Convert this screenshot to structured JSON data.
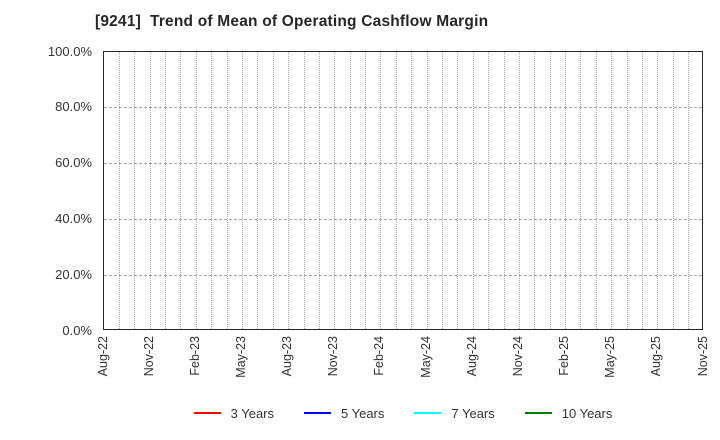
{
  "chart_data": {
    "type": "line",
    "title": "[9241]  Trend of Mean of Operating Cashflow Margin",
    "x_tick_labels": [
      "Aug-22",
      "Nov-22",
      "Feb-23",
      "May-23",
      "Aug-23",
      "Nov-23",
      "Feb-24",
      "May-24",
      "Aug-24",
      "Nov-24",
      "Feb-25",
      "May-25",
      "Aug-25",
      "Nov-25"
    ],
    "x_months_between_ticks": 3,
    "x_total_month_intervals": 39,
    "y_ticks": [
      {
        "value": 0,
        "label": "0.0%"
      },
      {
        "value": 20,
        "label": "20.0%"
      },
      {
        "value": 40,
        "label": "40.0%"
      },
      {
        "value": 60,
        "label": "60.0%"
      },
      {
        "value": 80,
        "label": "80.0%"
      },
      {
        "value": 100,
        "label": "100.0%"
      }
    ],
    "ylim": [
      0,
      100
    ],
    "grid": true,
    "legend_position": "bottom-center",
    "series": [
      {
        "name": "3 Years",
        "color": "#ff0000",
        "values": []
      },
      {
        "name": "5 Years",
        "color": "#0000ff",
        "values": []
      },
      {
        "name": "7 Years",
        "color": "#00ffff",
        "values": []
      },
      {
        "name": "10 Years",
        "color": "#008000",
        "values": []
      }
    ]
  },
  "colors": {
    "title_text": "#262626",
    "tick_text": "#333333",
    "plot_border": "#262626",
    "gridline": "#a9a9a9",
    "background": "#ffffff"
  }
}
